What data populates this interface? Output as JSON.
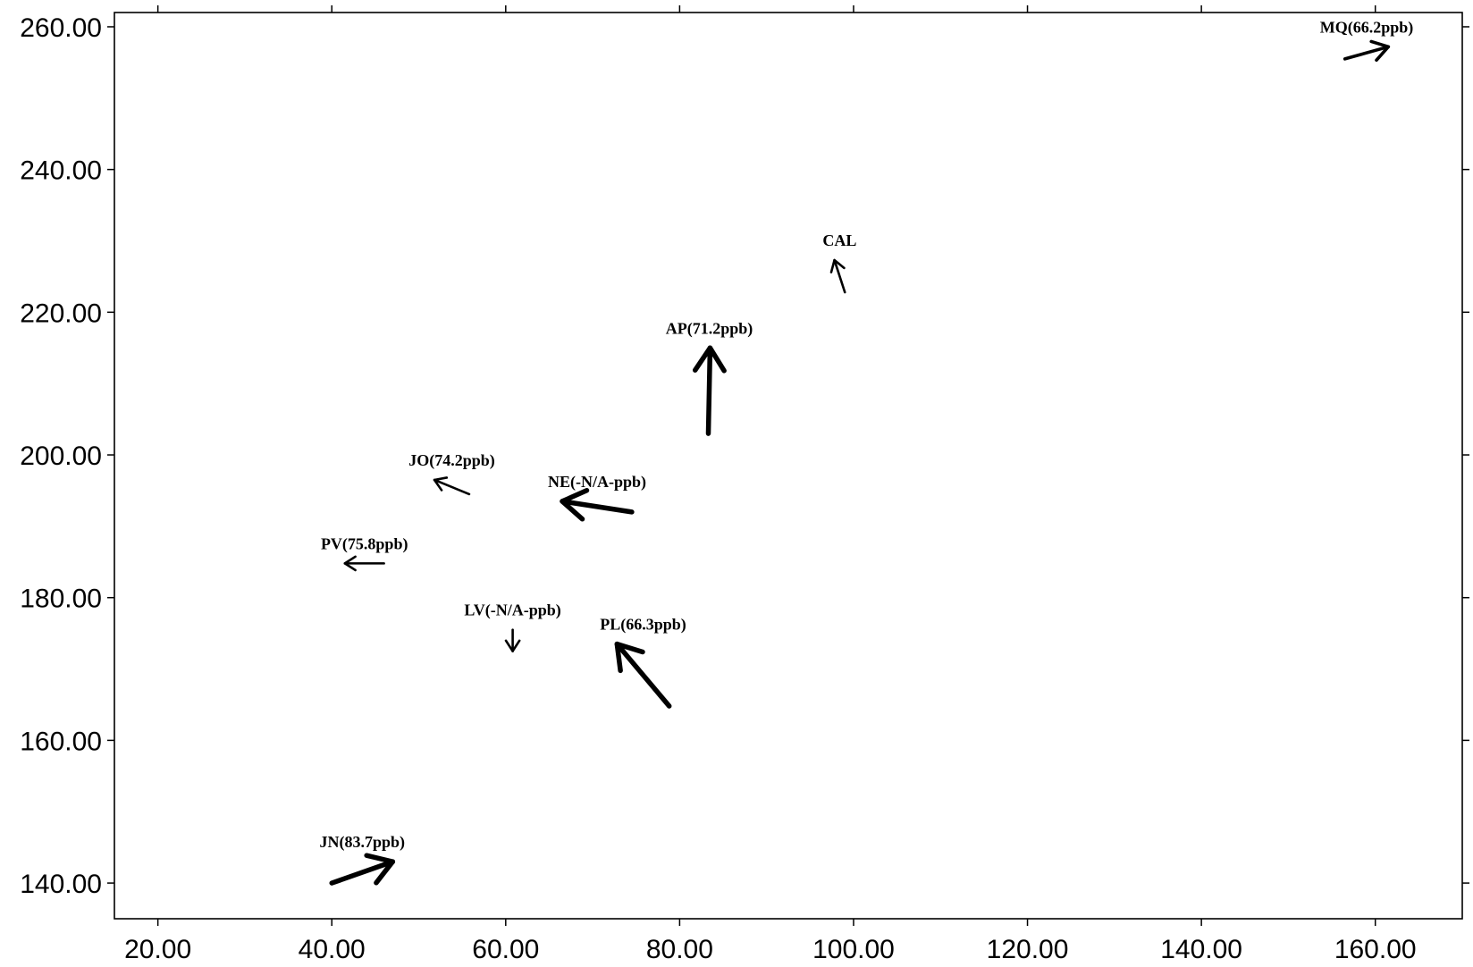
{
  "chart_data": {
    "type": "vector-field",
    "title": "",
    "xlabel": "",
    "ylabel": "",
    "xlim": [
      15.0,
      170.0
    ],
    "ylim": [
      135.0,
      262.0
    ],
    "x_ticks": [
      20,
      40,
      60,
      80,
      100,
      120,
      140,
      160
    ],
    "y_ticks": [
      140,
      160,
      180,
      200,
      220,
      240,
      260
    ],
    "x_tick_labels": [
      "20.00",
      "40.00",
      "60.00",
      "80.00",
      "100.00",
      "120.00",
      "140.00",
      "160.00"
    ],
    "y_tick_labels": [
      "140.00",
      "160.00",
      "180.00",
      "200.00",
      "220.00",
      "240.00",
      "260.00"
    ],
    "grid": false,
    "points": [
      {
        "label": "MQ(66.2ppb)",
        "x": 156.5,
        "y": 255.5,
        "x2": 161.5,
        "y2": 257.2,
        "weight": "medium"
      },
      {
        "label": "CAL",
        "x": 99.0,
        "y": 222.8,
        "x2": 97.8,
        "y2": 227.3,
        "weight": "thin"
      },
      {
        "label": "AP(71.2ppb)",
        "x": 83.3,
        "y": 203.0,
        "x2": 83.5,
        "y2": 215.0,
        "weight": "heavy"
      },
      {
        "label": "JO(74.2ppb)",
        "x": 55.8,
        "y": 194.5,
        "x2": 51.8,
        "y2": 196.5,
        "weight": "thin"
      },
      {
        "label": "NE(-N/A-ppb)",
        "x": 74.5,
        "y": 192.0,
        "x2": 66.5,
        "y2": 193.5,
        "weight": "heavy"
      },
      {
        "label": "PV(75.8ppb)",
        "x": 46.0,
        "y": 184.8,
        "x2": 41.5,
        "y2": 184.8,
        "weight": "thin"
      },
      {
        "label": "LV(-N/A-ppb)",
        "x": 60.8,
        "y": 175.5,
        "x2": 60.8,
        "y2": 172.5,
        "weight": "thin"
      },
      {
        "label": "PL(66.3ppb)",
        "x": 78.8,
        "y": 164.8,
        "x2": 72.8,
        "y2": 173.5,
        "weight": "heavy"
      },
      {
        "label": "JN(83.7ppb)",
        "x": 40.0,
        "y": 140.0,
        "x2": 47.0,
        "y2": 143.0,
        "weight": "heavy"
      }
    ]
  }
}
